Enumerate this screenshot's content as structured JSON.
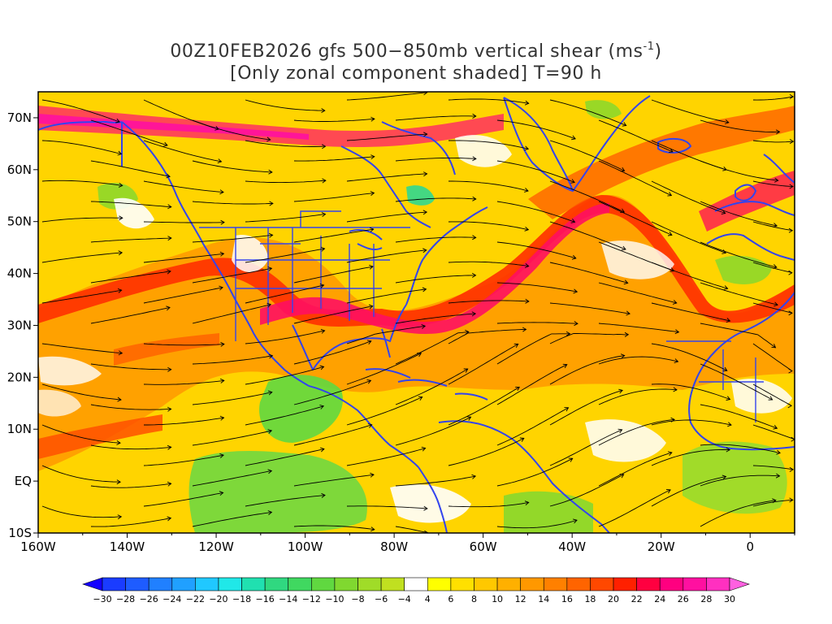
{
  "title": {
    "line1_main": "00Z10FEB2026 gfs 500−850mb vertical shear (ms",
    "line1_sup": "-1",
    "line1_end": ")",
    "line2": "[Only zonal component shaded] T=90 h"
  },
  "map": {
    "lon_range": [
      -160,
      10
    ],
    "lat_range": [
      -10,
      75
    ],
    "x_ticks": [
      {
        "lon": -160,
        "label": "160W"
      },
      {
        "lon": -140,
        "label": "140W"
      },
      {
        "lon": -120,
        "label": "120W"
      },
      {
        "lon": -100,
        "label": "100W"
      },
      {
        "lon": -80,
        "label": "80W"
      },
      {
        "lon": -60,
        "label": "60W"
      },
      {
        "lon": -40,
        "label": "40W"
      },
      {
        "lon": -20,
        "label": "20W"
      },
      {
        "lon": 0,
        "label": "0"
      }
    ],
    "y_ticks": [
      {
        "lat": 70,
        "label": "70N"
      },
      {
        "lat": 60,
        "label": "60N"
      },
      {
        "lat": 50,
        "label": "50N"
      },
      {
        "lat": 40,
        "label": "40N"
      },
      {
        "lat": 30,
        "label": "30N"
      },
      {
        "lat": 20,
        "label": "20N"
      },
      {
        "lat": 10,
        "label": "10N"
      },
      {
        "lat": 0,
        "label": "EQ"
      },
      {
        "lat": -10,
        "label": "10S"
      }
    ],
    "colors": {
      "frame": "#000000",
      "coastline": "#3344ee",
      "streamline": "#000000",
      "background": "#ffffff"
    }
  },
  "colorbar": {
    "levels": [
      "-30",
      "-28",
      "-26",
      "-24",
      "-22",
      "-20",
      "-18",
      "-16",
      "-14",
      "-12",
      "-10",
      "-8",
      "-6",
      "-4",
      "4",
      "6",
      "8",
      "10",
      "12",
      "14",
      "16",
      "18",
      "20",
      "22",
      "24",
      "26",
      "28",
      "30"
    ],
    "colors": [
      "#1400ff",
      "#1a3cff",
      "#1e5cff",
      "#2080ff",
      "#20a0ff",
      "#20c8ff",
      "#20e8e8",
      "#20e0b0",
      "#30d880",
      "#40d860",
      "#60d840",
      "#80d830",
      "#a0dc28",
      "#c0e020",
      "#ffffff",
      "#ffff00",
      "#ffe000",
      "#ffc800",
      "#ffb000",
      "#ff9800",
      "#ff8000",
      "#ff6400",
      "#ff4800",
      "#ff2000",
      "#ff0040",
      "#ff0080",
      "#ff10a0",
      "#ff30c0",
      "#ff60e0"
    ]
  }
}
